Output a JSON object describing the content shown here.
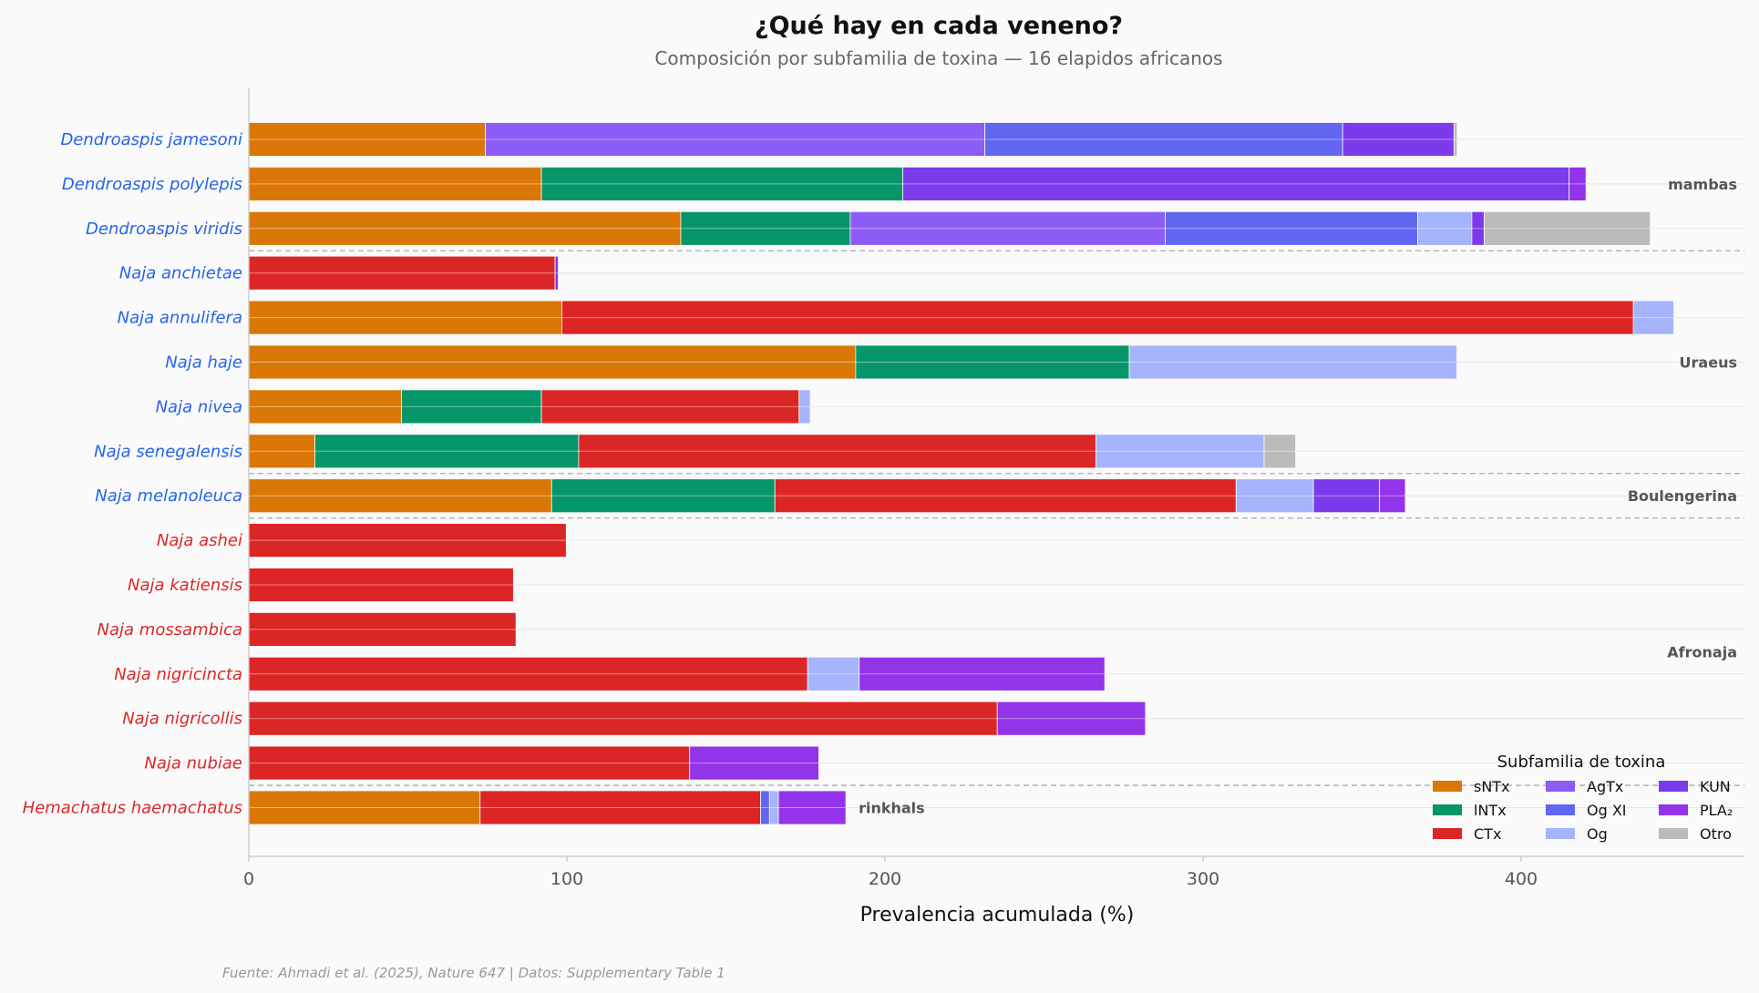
{
  "chart_data": {
    "type": "bar",
    "orientation": "horizontal",
    "stacked": true,
    "title": "¿Qué hay en cada veneno?",
    "subtitle": "Composición por subfamilia de toxina — 16 elapidos africanos",
    "xlabel": "Prevalencia acumulada (%)",
    "ylabel": "",
    "xlim": [
      0,
      470
    ],
    "xticks": [
      0,
      100,
      200,
      300,
      400
    ],
    "grid": "y",
    "footer": "Fuente: Ahmadi et al. (2025), Nature 647 | Datos: Supplementary Table 1",
    "legend": {
      "title": "Subfamilia de toxina",
      "placement": "bottom-right"
    },
    "series_names": [
      "sNTx",
      "lNTx",
      "CTx",
      "AgTx",
      "Og XI",
      "Og",
      "KUN",
      "PLA₂",
      "Otro"
    ],
    "series_colors": [
      "#d97706",
      "#059669",
      "#dc2626",
      "#8b5cf6",
      "#6366f1",
      "#a5b4fc",
      "#7c3aed",
      "#9333ea",
      "#bbbbbb"
    ],
    "groups": [
      {
        "name": "mambas",
        "rows": [
          0,
          2
        ],
        "color": "#2563eb"
      },
      {
        "name": "Uraeus",
        "rows": [
          3,
          7
        ],
        "color": "#2563eb"
      },
      {
        "name": "Boulengerina",
        "rows": [
          8,
          8
        ],
        "color": "#2563eb"
      },
      {
        "name": "Afronaja",
        "rows": [
          9,
          14
        ],
        "color": "#dc2626"
      },
      {
        "name": "rinkhals",
        "rows": [
          15,
          15
        ],
        "color": "#dc2626"
      }
    ],
    "categories": [
      "Dendroaspis jamesoni",
      "Dendroaspis polylepis",
      "Dendroaspis viridis",
      "Naja anchietae",
      "Naja annulifera",
      "Naja haje",
      "Naja nivea",
      "Naja senegalensis",
      "Naja melanoleuca",
      "Naja ashei",
      "Naja katiensis",
      "Naja mossambica",
      "Naja nigricincta",
      "Naja nigricollis",
      "Naja nubiae",
      "Hemachatus haemachatus"
    ],
    "values": [
      [
        74.4,
        0,
        0,
        157,
        112.5,
        0,
        35,
        0,
        1
      ],
      [
        92,
        113.6,
        0,
        0,
        0,
        0,
        209.5,
        5.3,
        0
      ],
      [
        135.8,
        53.3,
        0,
        99,
        79.4,
        17,
        3.9,
        0,
        52.2
      ],
      [
        0,
        0,
        96.3,
        0,
        0,
        0,
        1,
        0,
        0
      ],
      [
        98.4,
        0,
        336.9,
        0,
        0,
        12.7,
        0,
        0,
        0
      ],
      [
        190.8,
        86,
        0,
        0,
        0,
        103,
        0,
        0,
        0
      ],
      [
        48,
        44,
        81,
        0,
        0,
        3.5,
        0,
        0,
        0
      ],
      [
        20.8,
        82.9,
        162.6,
        0,
        0,
        52.9,
        0,
        0,
        9.9
      ],
      [
        95.2,
        70.2,
        145,
        0,
        0,
        24.3,
        20.8,
        8.1,
        0
      ],
      [
        0,
        0,
        99.8,
        0,
        0,
        0,
        0,
        0,
        0
      ],
      [
        0,
        0,
        83.2,
        0,
        0,
        0,
        0,
        0,
        0
      ],
      [
        0,
        0,
        84,
        0,
        0,
        0,
        0,
        0,
        0
      ],
      [
        0,
        0,
        175.7,
        0,
        0,
        16.2,
        0,
        77.2,
        0
      ],
      [
        0,
        0,
        235.3,
        0,
        0,
        0,
        0,
        46.6,
        0
      ],
      [
        0,
        0,
        138.6,
        0,
        0,
        0,
        0,
        40.6,
        0
      ],
      [
        72.7,
        0,
        88.2,
        0,
        2.8,
        2.8,
        0,
        21.2,
        0
      ]
    ]
  }
}
